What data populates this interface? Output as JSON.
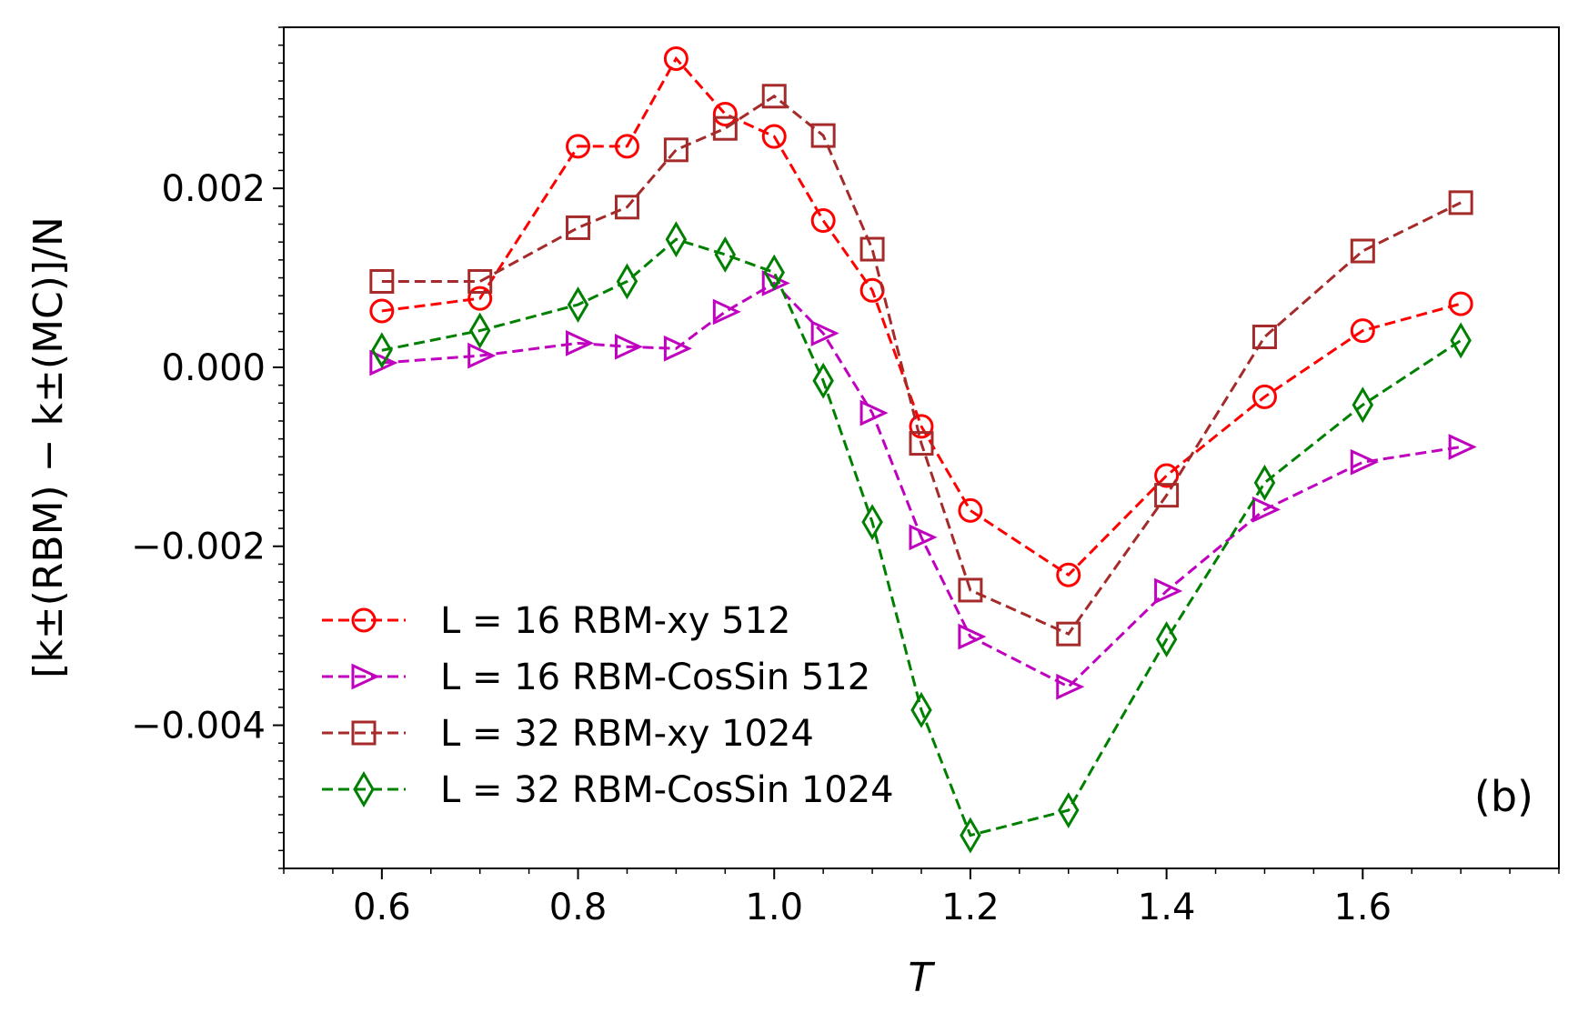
{
  "chart_data": {
    "type": "line",
    "xlabel": "T",
    "ylabel": "[k±(RBM) − k±(MC)]/N",
    "xlim": [
      0.5,
      1.8
    ],
    "ylim": [
      -0.0056,
      0.0038
    ],
    "xticks": [
      0.6,
      0.8,
      1.0,
      1.2,
      1.4,
      1.6
    ],
    "xtick_labels": [
      "0.6",
      "0.8",
      "1.0",
      "1.2",
      "1.4",
      "1.6"
    ],
    "yticks": [
      0.002,
      0.0,
      -0.002,
      -0.004
    ],
    "ytick_labels": [
      "0.002",
      "0.000",
      "−0.002",
      "−0.004"
    ],
    "grid": false,
    "legend_position": "lower-left",
    "annotation": "(b)",
    "series": [
      {
        "name": "L = 16 RBM-xy 512",
        "legend_label": "L = 16 RBM-xy 512",
        "color": "#ff0000",
        "marker": "circle",
        "x": [
          0.6,
          0.7,
          0.8,
          0.85,
          0.9,
          0.95,
          1.0,
          1.05,
          1.1,
          1.15,
          1.2,
          1.3,
          1.4,
          1.5,
          1.6,
          1.7
        ],
        "y": [
          0.00063,
          0.00077,
          0.00247,
          0.00247,
          0.00345,
          0.00283,
          0.00258,
          0.00164,
          0.00086,
          -0.00066,
          -0.0016,
          -0.00232,
          -0.00121,
          -0.00033,
          0.00041,
          0.00071
        ]
      },
      {
        "name": "L = 16 RBM-CosSin 512",
        "legend_label": "L = 16 RBM-CosSin 512",
        "color": "#bf00bf",
        "marker": "triangle-right",
        "x": [
          0.6,
          0.7,
          0.8,
          0.85,
          0.9,
          0.95,
          1.0,
          1.05,
          1.1,
          1.15,
          1.2,
          1.3,
          1.4,
          1.5,
          1.6,
          1.7
        ],
        "y": [
          5e-05,
          0.00013,
          0.00027,
          0.00023,
          0.00021,
          0.00062,
          0.00094,
          0.00038,
          -0.00051,
          -0.0019,
          -0.00301,
          -0.00357,
          -0.0025,
          -0.00159,
          -0.00106,
          -0.00089
        ]
      },
      {
        "name": "L = 32 RBM-xy 1024",
        "legend_label": "L = 32 RBM-xy 1024",
        "color": "#a52a2a",
        "marker": "square",
        "x": [
          0.6,
          0.7,
          0.8,
          0.85,
          0.9,
          0.95,
          1.0,
          1.05,
          1.1,
          1.15,
          1.2,
          1.3,
          1.4,
          1.5,
          1.6,
          1.7
        ],
        "y": [
          0.00096,
          0.00096,
          0.00156,
          0.00179,
          0.00243,
          0.00267,
          0.00303,
          0.00259,
          0.00132,
          -0.00085,
          -0.00249,
          -0.00298,
          -0.00143,
          0.00034,
          0.0013,
          0.00184
        ]
      },
      {
        "name": "L = 32 RBM-CosSin 1024",
        "legend_label": "L = 32 RBM-CosSin 1024",
        "color": "#008000",
        "marker": "thin-diamond",
        "x": [
          0.6,
          0.7,
          0.8,
          0.85,
          0.9,
          0.95,
          1.0,
          1.05,
          1.1,
          1.15,
          1.2,
          1.3,
          1.4,
          1.5,
          1.6,
          1.7
        ],
        "y": [
          0.00019,
          0.00041,
          0.0007,
          0.00096,
          0.00143,
          0.00126,
          0.00106,
          -0.00015,
          -0.00173,
          -0.00383,
          -0.00523,
          -0.00495,
          -0.00304,
          -0.00129,
          -0.00042,
          0.0003
        ]
      }
    ]
  }
}
